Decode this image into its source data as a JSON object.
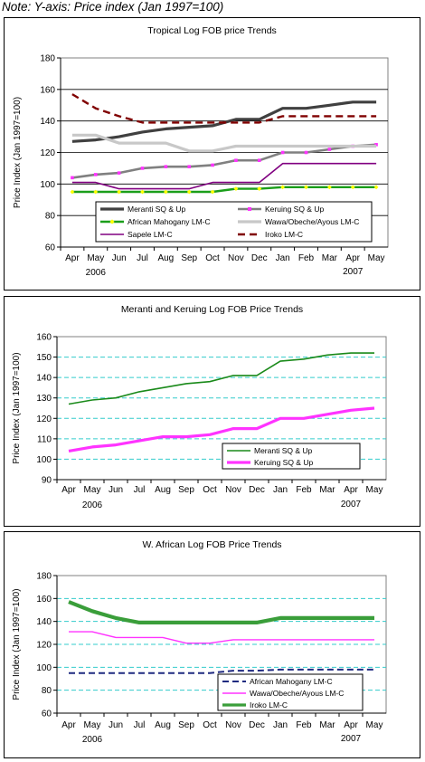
{
  "note": "Note: Y-axis: Price index (Jan 1997=100)",
  "months": [
    "Apr",
    "May",
    "Jun",
    "Jul",
    "Aug",
    "Sep",
    "Oct",
    "Nov",
    "Dec",
    "Jan",
    "Feb",
    "Mar",
    "Apr",
    "May"
  ],
  "year_start": "2006",
  "year_end": "2007",
  "ylabel": "Price Index (Jan 1997=100)",
  "colors": {
    "meranti": "#404040",
    "keruing": "#808080",
    "keruing_bright": "#ff33ff",
    "african_mahogany": "#1a9e1a",
    "african_mahogany_bright": "#1f2a80",
    "wawa": "#c8c8c8",
    "wawa_bright": "#ff33ff",
    "sapele": "#800080",
    "iroko": "#800000",
    "iroko_bright": "#3a9e3a",
    "meranti_bright": "#1a8a1a",
    "grid_blue": "#33cccc",
    "plot_bg": "#ffffff",
    "marker_yellow": "#ffff00"
  },
  "chart_data": [
    {
      "type": "line",
      "title": "Tropical Log FOB price Trends",
      "xlabel": "",
      "ylabel": "Price Index (Jan 1997=100)",
      "ylim": [
        60,
        180
      ],
      "yticks": [
        60,
        80,
        100,
        120,
        140,
        160,
        180
      ],
      "grid": "horizontal",
      "legend": "bottom",
      "categories": [
        "Apr",
        "May",
        "Jun",
        "Jul",
        "Aug",
        "Sep",
        "Oct",
        "Nov",
        "Dec",
        "Jan",
        "Feb",
        "Mar",
        "Apr",
        "May"
      ],
      "series": [
        {
          "name": "Meranti SQ & Up",
          "values": [
            127,
            128,
            130,
            133,
            135,
            136,
            137,
            141,
            141,
            148,
            148,
            150,
            152,
            152
          ]
        },
        {
          "name": "Keruing SQ & Up",
          "values": [
            104,
            106,
            107,
            110,
            111,
            111,
            112,
            115,
            115,
            120,
            120,
            122,
            124,
            125
          ]
        },
        {
          "name": "African Mahogany LM-C",
          "values": [
            95,
            95,
            95,
            95,
            95,
            95,
            95,
            97,
            97,
            98,
            98,
            98,
            98,
            98
          ]
        },
        {
          "name": "Wawa/Obeche/Ayous LM-C",
          "values": [
            131,
            131,
            126,
            126,
            126,
            121,
            121,
            124,
            124,
            124,
            124,
            124,
            124,
            124
          ]
        },
        {
          "name": "Sapele LM-C",
          "values": [
            101,
            101,
            97,
            97,
            97,
            97,
            101,
            101,
            101,
            113,
            113,
            113,
            113,
            113
          ]
        },
        {
          "name": "Iroko LM-C",
          "values": [
            157,
            148,
            143,
            139,
            139,
            139,
            139,
            139,
            139,
            143,
            143,
            143,
            143,
            143
          ]
        }
      ]
    },
    {
      "type": "line",
      "title": "Meranti and Keruing Log FOB Price Trends",
      "xlabel": "",
      "ylabel": "Price Index (Jan 1997=100)",
      "ylim": [
        90,
        160
      ],
      "yticks": [
        90,
        100,
        110,
        120,
        130,
        140,
        150,
        160
      ],
      "grid": "horizontal-dashed",
      "legend": "bottom-right",
      "categories": [
        "Apr",
        "May",
        "Jun",
        "Jul",
        "Aug",
        "Sep",
        "Oct",
        "Nov",
        "Dec",
        "Jan",
        "Feb",
        "Mar",
        "Apr",
        "May"
      ],
      "series": [
        {
          "name": "Meranti SQ & Up",
          "values": [
            127,
            129,
            130,
            133,
            135,
            137,
            138,
            141,
            141,
            148,
            149,
            151,
            152,
            152
          ]
        },
        {
          "name": "Keruing SQ & Up",
          "values": [
            104,
            106,
            107,
            109,
            111,
            111,
            112,
            115,
            115,
            120,
            120,
            122,
            124,
            125
          ]
        }
      ]
    },
    {
      "type": "line",
      "title": "W. African Log FOB Price Trends",
      "xlabel": "",
      "ylabel": "Price Index (Jan 1997=100)",
      "ylim": [
        60,
        180
      ],
      "yticks": [
        60,
        80,
        100,
        120,
        140,
        160,
        180
      ],
      "grid": "horizontal-dashed",
      "legend": "bottom-right",
      "categories": [
        "Apr",
        "May",
        "Jun",
        "Jul",
        "Aug",
        "Sep",
        "Oct",
        "Nov",
        "Dec",
        "Jan",
        "Feb",
        "Mar",
        "Apr",
        "May"
      ],
      "series": [
        {
          "name": "African Mahogany LM-C",
          "values": [
            95,
            95,
            95,
            95,
            95,
            95,
            95,
            97,
            97,
            98,
            98,
            98,
            98,
            98
          ]
        },
        {
          "name": "Wawa/Obeche/Ayous LM-C",
          "values": [
            131,
            131,
            126,
            126,
            126,
            121,
            121,
            124,
            124,
            124,
            124,
            124,
            124,
            124
          ]
        },
        {
          "name": "Iroko LM-C",
          "values": [
            157,
            149,
            143,
            139,
            139,
            139,
            139,
            139,
            139,
            143,
            143,
            143,
            143,
            143
          ]
        }
      ]
    }
  ]
}
